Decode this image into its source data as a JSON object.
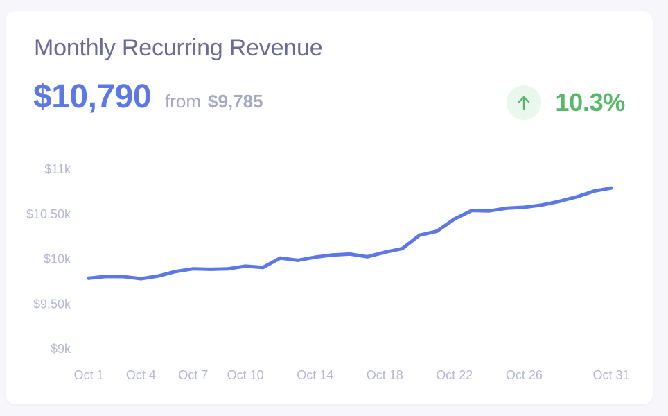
{
  "card": {
    "title": "Monthly Recurring Revenue",
    "current_value": "$10,790",
    "from_label": "from",
    "previous_value": "$9,785",
    "change": "10.3%",
    "trend_icon": "arrow-up-icon"
  },
  "colors": {
    "line": "#5b78e6",
    "title": "#6b6b99",
    "muted": "#a6a8c8",
    "positive": "#57b968",
    "positive_bg": "#e9f7ec"
  },
  "chart_data": {
    "type": "line",
    "title": "",
    "xlabel": "",
    "ylabel": "",
    "ylim": [
      9000,
      11000
    ],
    "y_ticks": [
      {
        "value": 11000,
        "label": "$11k"
      },
      {
        "value": 10500,
        "label": "$10.50k"
      },
      {
        "value": 10000,
        "label": "$10k"
      },
      {
        "value": 9500,
        "label": "$9.50k"
      },
      {
        "value": 9000,
        "label": "$9k"
      }
    ],
    "x_ticks": [
      {
        "day": 1,
        "label": "Oct 1"
      },
      {
        "day": 4,
        "label": "Oct 4"
      },
      {
        "day": 7,
        "label": "Oct 7"
      },
      {
        "day": 10,
        "label": "Oct 10"
      },
      {
        "day": 14,
        "label": "Oct 14"
      },
      {
        "day": 18,
        "label": "Oct 18"
      },
      {
        "day": 22,
        "label": "Oct 22"
      },
      {
        "day": 26,
        "label": "Oct 26"
      },
      {
        "day": 31,
        "label": "Oct 31"
      }
    ],
    "grid": false,
    "series": [
      {
        "x": [
          "Oct 1",
          "Oct 2",
          "Oct 3",
          "Oct 4",
          "Oct 5",
          "Oct 6",
          "Oct 7",
          "Oct 8",
          "Oct 9",
          "Oct 10",
          "Oct 11",
          "Oct 12",
          "Oct 13",
          "Oct 14",
          "Oct 15",
          "Oct 16",
          "Oct 17",
          "Oct 18",
          "Oct 19",
          "Oct 20",
          "Oct 21",
          "Oct 22",
          "Oct 23",
          "Oct 24",
          "Oct 25",
          "Oct 26",
          "Oct 27",
          "Oct 28",
          "Oct 29",
          "Oct 30",
          "Oct 31"
        ],
        "values": [
          9785,
          9805,
          9803,
          9780,
          9810,
          9860,
          9890,
          9885,
          9890,
          9920,
          9905,
          10010,
          9985,
          10020,
          10045,
          10055,
          10025,
          10075,
          10115,
          10265,
          10310,
          10445,
          10540,
          10535,
          10565,
          10575,
          10600,
          10640,
          10690,
          10755,
          10790
        ]
      }
    ]
  }
}
